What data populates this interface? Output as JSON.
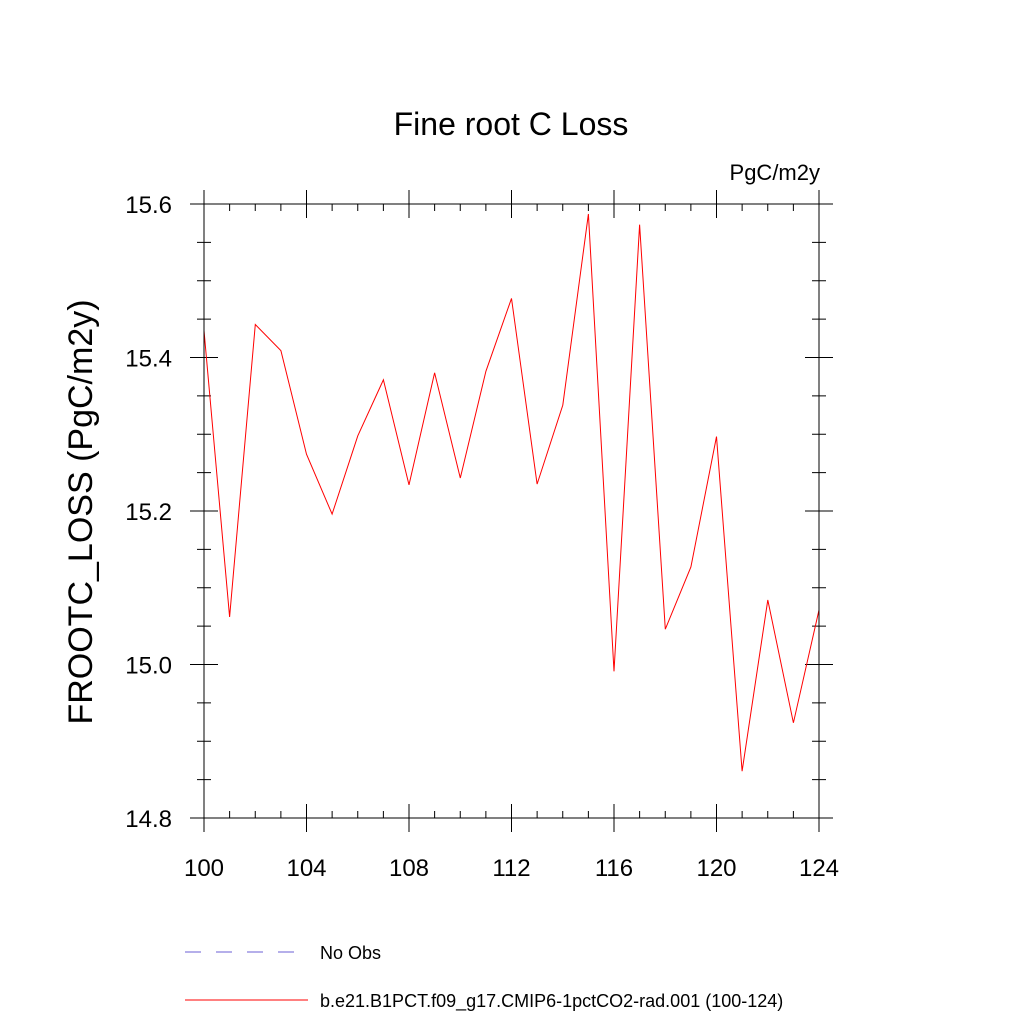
{
  "chart_data": {
    "type": "line",
    "title": "Fine root C Loss",
    "units_label": "PgC/m2y",
    "ylabel": "FROOTC_LOSS  (PgC/m2y)",
    "xlabel": "",
    "xlim": [
      100,
      124
    ],
    "ylim": [
      14.8,
      15.6
    ],
    "x_ticks": [
      "100",
      "104",
      "108",
      "112",
      "116",
      "120",
      "124"
    ],
    "y_ticks": [
      "14.8",
      "15.0",
      "15.2",
      "15.4",
      "15.6"
    ],
    "grid": false,
    "legend_position": "bottom",
    "series": [
      {
        "name": "b.e21.B1PCT.f09_g17.CMIP6-1pctCO2-rad.001 (100-124)",
        "color": "#ff0000",
        "style": "solid",
        "x": [
          100,
          101,
          102,
          103,
          104,
          105,
          106,
          107,
          108,
          109,
          110,
          111,
          112,
          113,
          114,
          115,
          116,
          117,
          118,
          119,
          120,
          121,
          122,
          123,
          124
        ],
        "y": [
          15.435,
          15.062,
          15.443,
          15.409,
          15.274,
          15.196,
          15.298,
          15.371,
          15.234,
          15.38,
          15.243,
          15.382,
          15.477,
          15.235,
          15.338,
          15.587,
          14.991,
          15.573,
          15.046,
          15.127,
          15.297,
          14.861,
          15.084,
          14.924,
          15.071
        ]
      }
    ],
    "legend": [
      {
        "label": "No Obs",
        "color": "#6b5fd6",
        "style": "dashed"
      },
      {
        "label": "b.e21.B1PCT.f09_g17.CMIP6-1pctCO2-rad.001 (100-124)",
        "color": "#ff0000",
        "style": "solid"
      }
    ]
  }
}
